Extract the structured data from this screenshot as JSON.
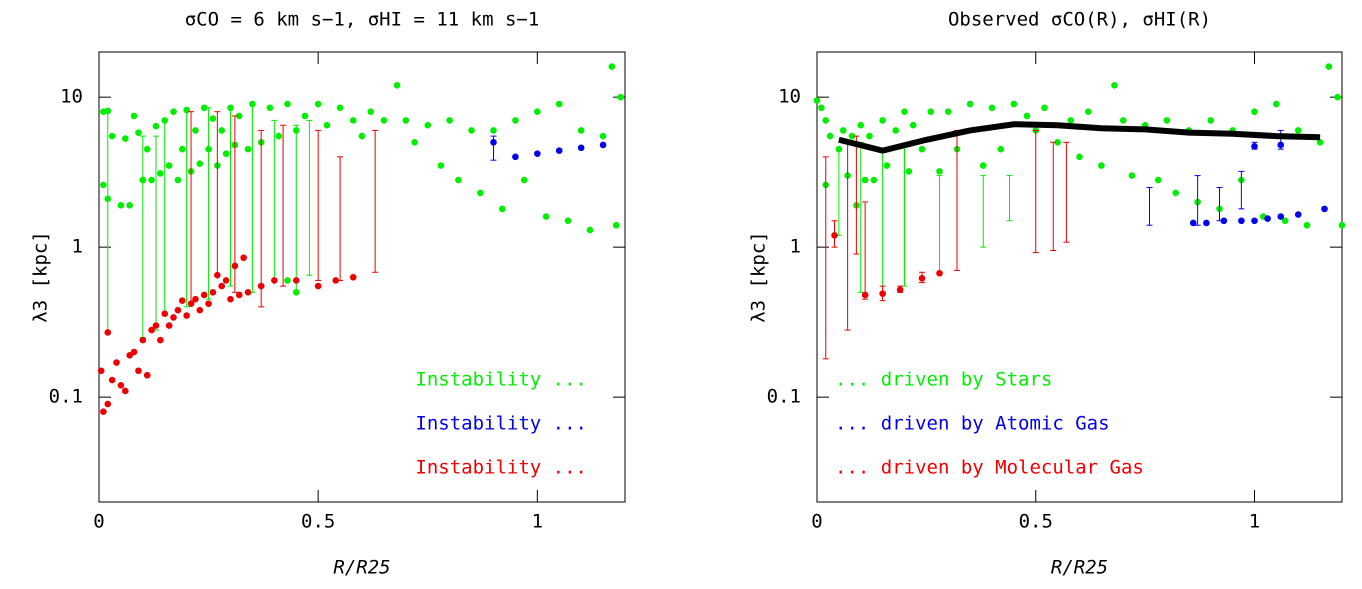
{
  "chart_data": [
    {
      "type": "scatter",
      "title": "σCO = 6 km s−1, σHI = 11 km s−1",
      "x_label": "R/R25",
      "y_label": "λ3 [kpc]",
      "xlim": [
        0,
        1.2
      ],
      "ylim": [
        0.02,
        20
      ],
      "xticks": [
        0,
        0.5,
        1
      ],
      "yticks": [
        0.1,
        1,
        10
      ],
      "y_scale": "log",
      "legend_corner": "lower right",
      "series": [
        {
          "name": "Instability ...",
          "color": "#00ee00",
          "x": [
            0.01,
            0.01,
            0.02,
            0.02,
            0.03,
            0.05,
            0.06,
            0.07,
            0.08,
            0.09,
            0.1,
            0.11,
            0.12,
            0.13,
            0.14,
            0.15,
            0.16,
            0.17,
            0.18,
            0.19,
            0.2,
            0.21,
            0.22,
            0.23,
            0.24,
            0.25,
            0.26,
            0.27,
            0.28,
            0.29,
            0.3,
            0.31,
            0.32,
            0.34,
            0.35,
            0.37,
            0.39,
            0.41,
            0.43,
            0.45,
            0.47,
            0.5,
            0.52,
            0.55,
            0.58,
            0.6,
            0.62,
            0.65,
            0.68,
            0.7,
            0.72,
            0.75,
            0.78,
            0.8,
            0.82,
            0.85,
            0.87,
            0.9,
            0.92,
            0.95,
            0.97,
            1.0,
            1.02,
            1.05,
            1.07,
            1.1,
            1.12,
            1.15,
            1.17,
            1.18,
            1.19,
            0.43,
            0.45
          ],
          "values": [
            2.6,
            8,
            8.1,
            2.1,
            5.5,
            1.9,
            5.3,
            1.9,
            7.5,
            5.8,
            2.8,
            4.5,
            2.8,
            6.4,
            3.1,
            7,
            3.5,
            8,
            2.8,
            4.5,
            8.2,
            3.2,
            6,
            3.6,
            8.5,
            4.5,
            7.2,
            3.5,
            6,
            4.2,
            8.5,
            4.8,
            7.5,
            4.5,
            9,
            5,
            8.5,
            5.5,
            9,
            6,
            7.5,
            9,
            6.5,
            8.5,
            7,
            5.5,
            8,
            7,
            12,
            7,
            5,
            6.5,
            3.5,
            7,
            2.8,
            6,
            2.3,
            6,
            1.8,
            7,
            2.8,
            8,
            1.6,
            9,
            1.5,
            6,
            1.3,
            5.5,
            16,
            1.4,
            10,
            0.6,
            0.5
          ],
          "error_bars": {
            "x": [
              0.02,
              0.1,
              0.13,
              0.15,
              0.2,
              0.25,
              0.3,
              0.35,
              0.4,
              0.45,
              0.48
            ],
            "low": [
              0.27,
              0.25,
              0.28,
              0.35,
              0.4,
              0.45,
              0.55,
              0.5,
              0.6,
              0.5,
              0.65
            ],
            "high": [
              8,
              5.5,
              5.5,
              7,
              8,
              8.5,
              8.5,
              9,
              7,
              6.5,
              7
            ]
          }
        },
        {
          "name": "Instability ...",
          "color": "#0000ee",
          "x": [
            0.9,
            0.95,
            1.0,
            1.05,
            1.1,
            1.15
          ],
          "values": [
            5,
            4,
            4.2,
            4.4,
            4.6,
            4.8
          ],
          "error_bars": {
            "x": [
              0.9
            ],
            "low": [
              3.8
            ],
            "high": [
              5.5
            ]
          }
        },
        {
          "name": "Instability ...",
          "color": "#ee0000",
          "x": [
            0.005,
            0.01,
            0.02,
            0.02,
            0.03,
            0.04,
            0.05,
            0.06,
            0.07,
            0.08,
            0.09,
            0.1,
            0.11,
            0.12,
            0.13,
            0.14,
            0.15,
            0.16,
            0.17,
            0.18,
            0.19,
            0.2,
            0.21,
            0.22,
            0.23,
            0.24,
            0.25,
            0.26,
            0.27,
            0.28,
            0.29,
            0.3,
            0.32,
            0.34,
            0.37,
            0.4,
            0.45,
            0.5,
            0.54,
            0.58,
            0.31,
            0.33
          ],
          "values": [
            0.15,
            0.08,
            0.09,
            0.27,
            0.13,
            0.17,
            0.12,
            0.11,
            0.19,
            0.2,
            0.15,
            0.24,
            0.14,
            0.28,
            0.3,
            0.24,
            0.36,
            0.3,
            0.34,
            0.38,
            0.44,
            0.35,
            0.42,
            0.45,
            0.38,
            0.48,
            0.42,
            0.5,
            0.65,
            0.55,
            0.6,
            0.45,
            0.48,
            0.5,
            0.55,
            0.6,
            0.6,
            0.55,
            0.6,
            0.63,
            0.75,
            0.85
          ],
          "error_bars": {
            "x": [
              0.21,
              0.27,
              0.31,
              0.37,
              0.42,
              0.5,
              0.55,
              0.63
            ],
            "low": [
              0.42,
              0.65,
              0.5,
              0.4,
              0.55,
              0.6,
              0.6,
              0.68
            ],
            "high": [
              8,
              8,
              7.5,
              6,
              6.5,
              6,
              4,
              6
            ]
          }
        }
      ]
    },
    {
      "type": "scatter",
      "title": "Observed σCO(R), σHI(R)",
      "x_label": "R/R25",
      "y_label": "λ3 [kpc]",
      "xlim": [
        0,
        1.2
      ],
      "ylim": [
        0.02,
        20
      ],
      "xticks": [
        0,
        0.5,
        1
      ],
      "yticks": [
        0.1,
        1,
        10
      ],
      "y_scale": "log",
      "legend_corner": "lower left",
      "series": [
        {
          "name": "... driven by Stars",
          "color": "#00ee00",
          "x": [
            0.0,
            0.01,
            0.02,
            0.03,
            0.02,
            0.05,
            0.06,
            0.07,
            0.08,
            0.09,
            0.1,
            0.11,
            0.12,
            0.13,
            0.15,
            0.16,
            0.18,
            0.2,
            0.21,
            0.22,
            0.24,
            0.26,
            0.28,
            0.3,
            0.32,
            0.35,
            0.38,
            0.4,
            0.42,
            0.45,
            0.48,
            0.5,
            0.52,
            0.55,
            0.58,
            0.6,
            0.62,
            0.65,
            0.68,
            0.7,
            0.72,
            0.75,
            0.78,
            0.8,
            0.82,
            0.85,
            0.87,
            0.9,
            0.92,
            0.95,
            0.97,
            1.0,
            1.02,
            1.05,
            1.07,
            1.1,
            1.12,
            1.15,
            1.17,
            1.19,
            1.2
          ],
          "values": [
            9.5,
            8.5,
            7,
            5.5,
            2.6,
            4.5,
            6,
            3,
            5.5,
            1.9,
            6.5,
            2.8,
            5.5,
            2.8,
            7,
            3.5,
            6,
            8,
            3.2,
            6.5,
            4.5,
            8,
            3.2,
            8,
            4.5,
            9,
            3.5,
            8.5,
            4.5,
            9,
            7.5,
            6,
            8.5,
            5,
            7,
            4,
            8,
            3.5,
            12,
            7,
            3,
            6.5,
            2.8,
            7,
            2.3,
            6,
            2,
            7,
            1.8,
            6,
            2.8,
            8,
            1.6,
            9,
            1.5,
            6,
            1.4,
            5,
            16,
            10,
            1.4
          ],
          "error_bars": {
            "x": [
              0.05,
              0.1,
              0.15,
              0.2,
              0.28,
              0.38,
              0.44
            ],
            "low": [
              1.2,
              0.5,
              0.5,
              0.55,
              0.67,
              1,
              1.5
            ],
            "high": [
              4.5,
              5,
              4.5,
              4.7,
              3,
              3,
              3
            ]
          }
        },
        {
          "name": "... driven by Atomic Gas",
          "color": "#0000ee",
          "x": [
            0.86,
            0.89,
            0.93,
            0.97,
            1.0,
            1.03,
            1.06,
            1.1,
            1.16,
            1.0,
            1.06
          ],
          "values": [
            1.45,
            1.45,
            1.5,
            1.5,
            1.5,
            1.55,
            1.6,
            1.65,
            1.8,
            4.7,
            4.8
          ],
          "error_bars": {
            "x": [
              0.76,
              0.87,
              0.92,
              0.97,
              1.0,
              1.06
            ],
            "low": [
              1.4,
              1.4,
              1.5,
              1.8,
              4.5,
              4.5
            ],
            "high": [
              2.5,
              3,
              2.5,
              3.2,
              5,
              6
            ]
          }
        },
        {
          "name": "... driven by Molecular Gas",
          "color": "#ee0000",
          "x": [
            0.04,
            0.11,
            0.15,
            0.19,
            0.24,
            0.28
          ],
          "values": [
            1.2,
            0.48,
            0.49,
            0.52,
            0.62,
            0.67
          ],
          "error_bars": {
            "x": [
              0.02,
              0.04,
              0.07,
              0.09,
              0.11,
              0.15,
              0.19,
              0.24,
              0.32,
              0.5,
              0.54,
              0.57
            ],
            "low": [
              0.18,
              1,
              0.28,
              0.9,
              0.45,
              0.44,
              0.5,
              0.58,
              0.7,
              0.92,
              0.95,
              1.08
            ],
            "high": [
              4,
              1.5,
              5,
              5.5,
              2,
              0.55,
              0.55,
              0.68,
              6,
              6,
              5,
              5
            ]
          }
        },
        {
          "type": "line",
          "color": "#000000",
          "x": [
            0.05,
            0.15,
            0.25,
            0.35,
            0.45,
            0.55,
            0.65,
            0.75,
            0.85,
            0.95,
            1.05,
            1.15
          ],
          "values": [
            5.2,
            4.4,
            5.2,
            6,
            6.6,
            6.5,
            6.2,
            6.1,
            5.8,
            5.7,
            5.5,
            5.4
          ]
        }
      ]
    }
  ]
}
